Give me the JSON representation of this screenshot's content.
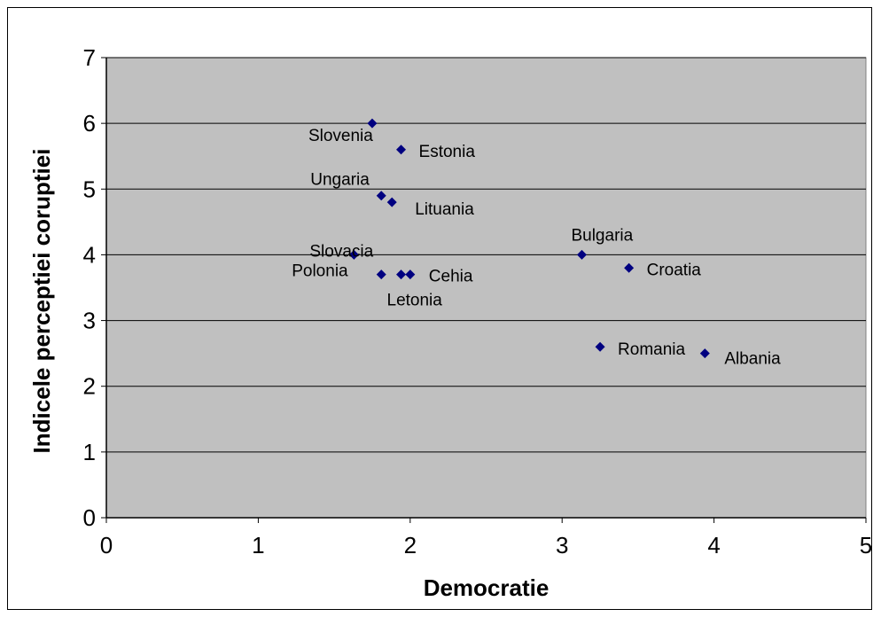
{
  "chart_data": {
    "type": "scatter",
    "title": "",
    "xlabel": "Democratie",
    "ylabel": "Indicele perceptiei coruptiei",
    "xlim": [
      0,
      5
    ],
    "ylim": [
      0,
      7
    ],
    "xticks": [
      0,
      1,
      2,
      3,
      4,
      5
    ],
    "yticks": [
      0,
      1,
      2,
      3,
      4,
      5,
      6,
      7
    ],
    "grid": "horizontal",
    "legend": "none",
    "plot_background": "#c0c0c0",
    "marker_color": "#000080",
    "gridline_color": "#000000",
    "points": [
      {
        "label": "Slovenia",
        "x": 1.75,
        "y": 6.0
      },
      {
        "label": "Estonia",
        "x": 1.94,
        "y": 5.6
      },
      {
        "label": "Ungaria",
        "x": 1.81,
        "y": 4.9
      },
      {
        "label": "Lituania",
        "x": 1.88,
        "y": 4.8
      },
      {
        "label": "Bulgaria",
        "x": 3.13,
        "y": 4.0
      },
      {
        "label": "Slovacia",
        "x": 1.63,
        "y": 4.0
      },
      {
        "label": "Croatia",
        "x": 3.44,
        "y": 3.8
      },
      {
        "label": "Polonia",
        "x": 1.81,
        "y": 3.7
      },
      {
        "label": "Letonia",
        "x": 1.94,
        "y": 3.7
      },
      {
        "label": "Cehia",
        "x": 2.0,
        "y": 3.7
      },
      {
        "label": "Romania",
        "x": 3.25,
        "y": 2.6
      },
      {
        "label": "Albania",
        "x": 3.94,
        "y": 2.5
      }
    ]
  }
}
